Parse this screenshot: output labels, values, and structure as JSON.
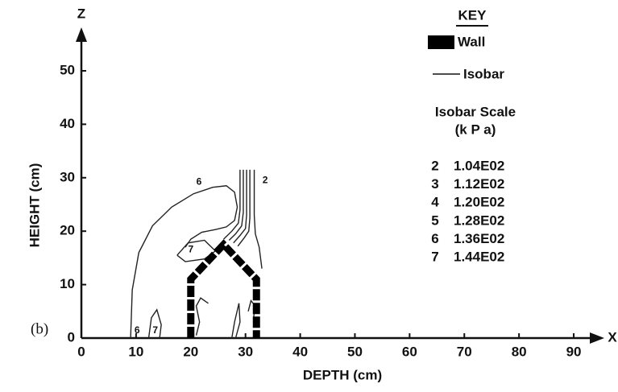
{
  "chart_data": {
    "type": "contour",
    "panel_label": "(b)",
    "x_label": "DEPTH (cm)",
    "y_label": "HEIGHT (cm)",
    "x_arrow_label": "X",
    "y_arrow_label": "Z",
    "xlim": [
      0,
      95
    ],
    "ylim": [
      0,
      57
    ],
    "xticks": [
      0,
      10,
      20,
      30,
      40,
      50,
      60,
      70,
      80,
      90
    ],
    "yticks": [
      0,
      10,
      20,
      30,
      40,
      50
    ],
    "wall": {
      "x": [
        20,
        20,
        26,
        32,
        32
      ],
      "y": [
        0,
        11,
        17.5,
        11,
        0
      ],
      "color": "#000000"
    },
    "contours": [
      {
        "x": [
          9,
          9.3,
          10.5,
          13,
          16.5,
          20.5,
          24,
          26.5,
          28,
          28.5,
          28,
          26.5,
          24.5,
          22,
          20,
          19
        ],
        "y": [
          0,
          9,
          16,
          21,
          24.5,
          27,
          28.2,
          28.5,
          27.3,
          24.5,
          22,
          20.8,
          20.3,
          19.8,
          18.5,
          17
        ]
      },
      {
        "x": [
          29,
          29,
          28.7,
          27.5,
          26
        ],
        "y": [
          31.5,
          24,
          21.5,
          20,
          18.5
        ]
      },
      {
        "x": [
          29.6,
          29.6,
          29.3,
          28.2,
          27
        ],
        "y": [
          31.5,
          23.5,
          21,
          19.5,
          18.3
        ]
      },
      {
        "x": [
          30.2,
          30.2,
          30,
          29,
          27.8
        ],
        "y": [
          31.5,
          23,
          20.5,
          19.2,
          17.8
        ]
      },
      {
        "x": [
          30.8,
          30.8,
          30.6,
          29.8,
          28.6
        ],
        "y": [
          31.5,
          22.5,
          20,
          18.8,
          17.2
        ]
      },
      {
        "x": [
          31.6,
          31.6,
          31.8,
          32.5,
          33
        ],
        "y": [
          31.5,
          23,
          19.5,
          17,
          13
        ]
      },
      {
        "x": [
          17.5,
          19.5,
          22.5,
          24.5,
          22.5,
          19,
          17.5
        ],
        "y": [
          15.5,
          17.8,
          18.3,
          16.3,
          14.8,
          14.3,
          15.5
        ]
      },
      {
        "x": [
          12.3,
          12.8,
          13.8,
          14.6,
          14.3
        ],
        "y": [
          0,
          3.8,
          5.3,
          2.5,
          0
        ]
      },
      {
        "x": [
          21,
          21.6,
          21,
          21.8,
          23.2
        ],
        "y": [
          0.5,
          3,
          6,
          7.5,
          6.5
        ]
      },
      {
        "x": [
          27.5,
          28,
          28.8,
          29,
          28.2
        ],
        "y": [
          0,
          3,
          6.5,
          3,
          0
        ]
      },
      {
        "x": [
          30.5,
          31,
          31.8,
          31.5
        ],
        "y": [
          5,
          7,
          6,
          4
        ]
      }
    ],
    "contour_labels": [
      {
        "text": "6",
        "x": 10.2,
        "y": 1.4
      },
      {
        "text": "7",
        "x": 13.5,
        "y": 1.4
      },
      {
        "text": "6",
        "x": 21.5,
        "y": 29.2
      },
      {
        "text": "2",
        "x": 33.6,
        "y": 29.5
      },
      {
        "text": "7",
        "x": 20,
        "y": 16.5
      }
    ],
    "key": {
      "title": "KEY",
      "wall": "Wall",
      "isobar": "Isobar",
      "scale_title": "Isobar Scale",
      "scale_unit": "(k P a)",
      "scale": [
        [
          "2",
          "1.04E02"
        ],
        [
          "3",
          "1.12E02"
        ],
        [
          "4",
          "1.20E02"
        ],
        [
          "5",
          "1.28E02"
        ],
        [
          "6",
          "1.36E02"
        ],
        [
          "7",
          "1.44E02"
        ]
      ]
    }
  }
}
